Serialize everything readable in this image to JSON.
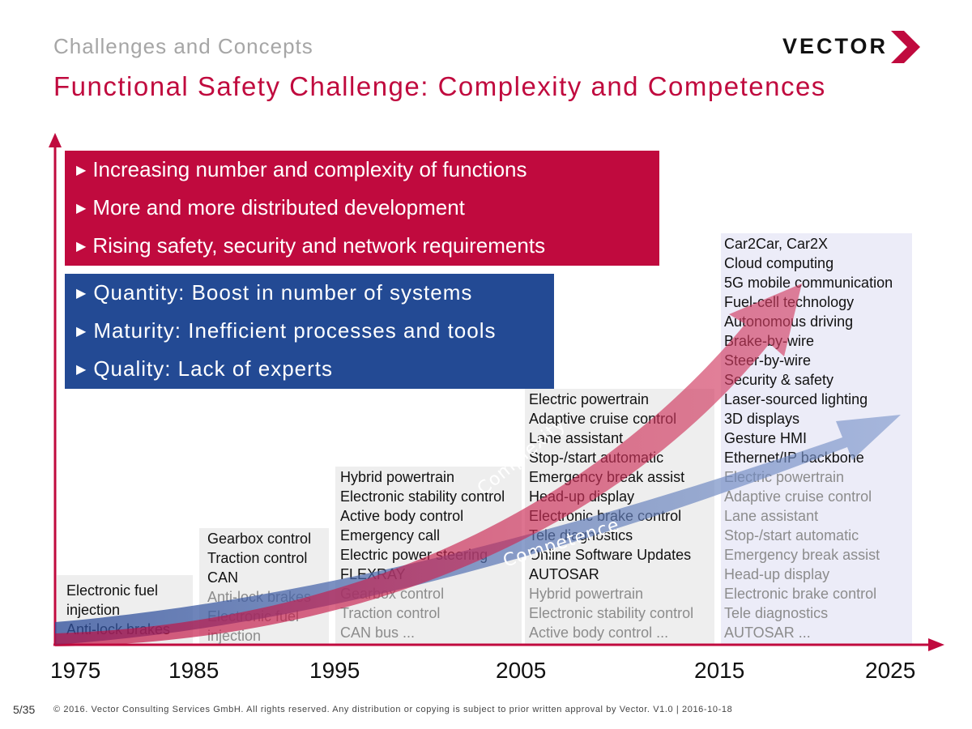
{
  "header": {
    "subtitle": "Challenges and Concepts",
    "title": "Functional Safety Challenge: Complexity and Competences",
    "logo_text": "VECTOR"
  },
  "colors": {
    "brand_red": "#c00a3e",
    "brand_blue": "#234a94",
    "grey_text": "#8c8c8c"
  },
  "red_box": {
    "items": [
      "Increasing number and complexity of functions",
      "More and more distributed development",
      "Rising safety, security and network requirements"
    ]
  },
  "blue_box": {
    "items": [
      "Quantity: Boost in number of systems",
      "Maturity: Inefficient processes and tools",
      "Quality: Lack of experts"
    ]
  },
  "arrows": {
    "complexity_label": "Complexity",
    "competence_label": "Competence"
  },
  "columns": [
    {
      "dark": [
        "Electronic fuel",
        "injection",
        "Anti-lock brakes"
      ],
      "grey": []
    },
    {
      "dark": [
        "Gearbox control",
        "Traction control",
        "CAN"
      ],
      "grey": [
        "Anti-lock brakes",
        "Electronic fuel",
        "injection"
      ]
    },
    {
      "dark": [
        "Hybrid powertrain",
        "Electronic stability control",
        "Active body control",
        "Emergency call",
        "Electric power steering",
        "FLEXRAY"
      ],
      "grey": [
        "Gearbox control",
        "Traction control",
        "CAN bus ..."
      ]
    },
    {
      "dark": [
        "Electric powertrain",
        "Adaptive cruise control",
        "Lane assistant",
        "Stop-/start automatic",
        "Emergency break assist",
        "Head-up display",
        "Electronic brake control",
        "Tele diagnostics",
        "Online Software Updates",
        "AUTOSAR"
      ],
      "grey": [
        "Hybrid powertrain",
        "Electronic stability control",
        "Active body control  ..."
      ]
    },
    {
      "dark": [
        "Car2Car, Car2X",
        "Cloud computing",
        "5G mobile communication",
        "Fuel-cell technology",
        "Autonomous driving",
        "Brake-by-wire",
        "Steer-by-wire",
        "Security & safety",
        "Laser-sourced lighting",
        "3D displays",
        "Gesture HMI",
        "Ethernet/IP backbone"
      ],
      "grey": [
        "Electric powertrain",
        "Adaptive cruise control",
        "Lane assistant",
        "Stop-/start automatic",
        "Emergency break assist",
        "Head-up display",
        "Electronic brake control",
        "Tele diagnostics",
        "AUTOSAR ..."
      ]
    }
  ],
  "years": [
    "1975",
    "1985",
    "1995",
    "2005",
    "2015",
    "2025"
  ],
  "footer": {
    "page": "5/35",
    "copyright": "© 2016. Vector Consulting Services GmbH. All rights reserved. Any distribution or copying is subject to prior written approval by Vector. V1.0 | 2016-10-18"
  }
}
